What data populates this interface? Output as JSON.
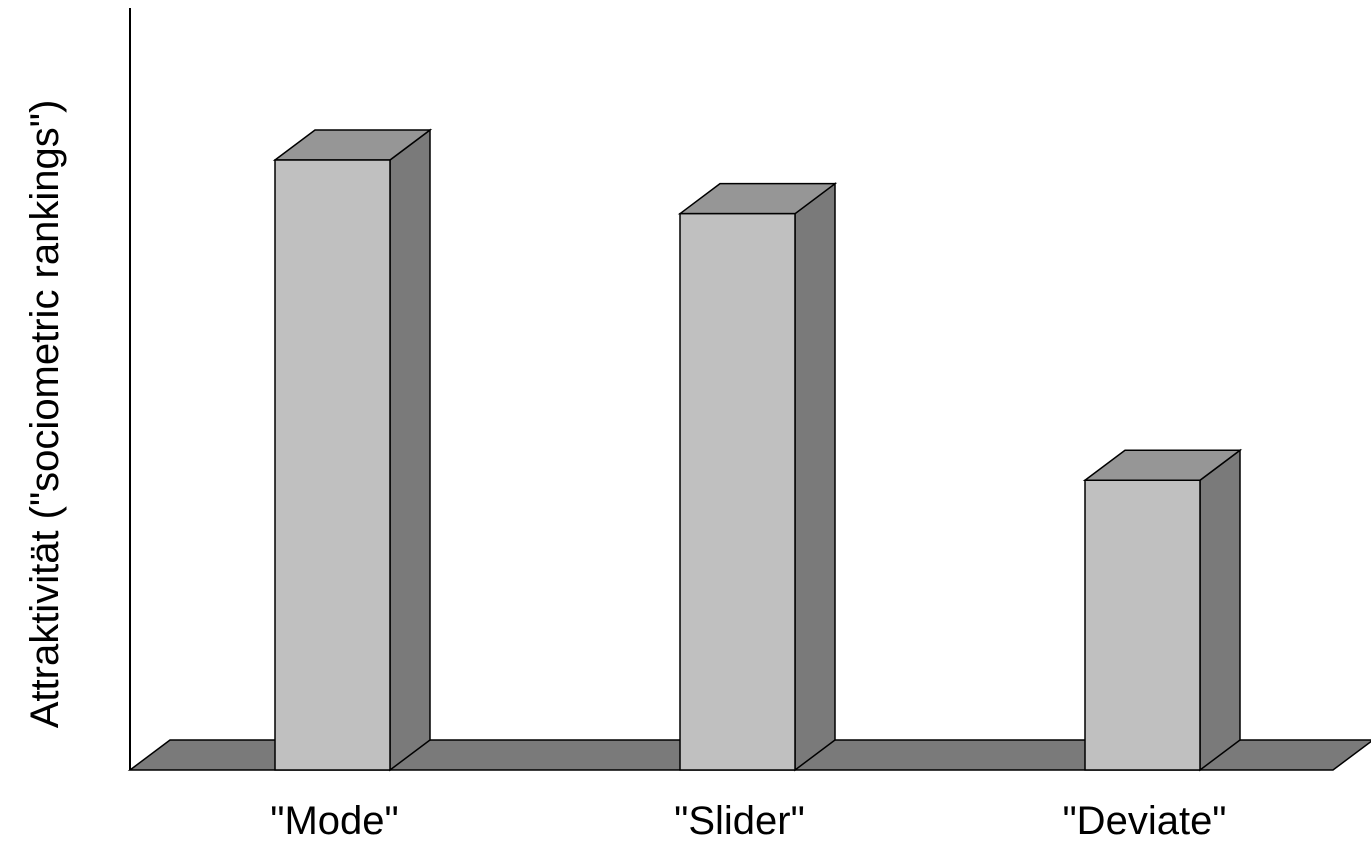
{
  "chart_data": {
    "type": "bar",
    "style": "3d",
    "categories": [
      "\"Mode\"",
      "\"Slider\"",
      "\"Deviate\""
    ],
    "values": [
      100,
      91.2,
      47.5
    ],
    "ylabel": "Attraktivität (\"sociometric rankings\")",
    "xlabel": "",
    "title": "",
    "ylim": [
      0,
      100
    ],
    "grid": false,
    "y_ticks_shown": false
  },
  "colors": {
    "bar_front": "#c0c0c0",
    "bar_top": "#969696",
    "bar_side": "#7a7a7a",
    "floor": "#7a7a7a",
    "stroke": "#000000"
  }
}
